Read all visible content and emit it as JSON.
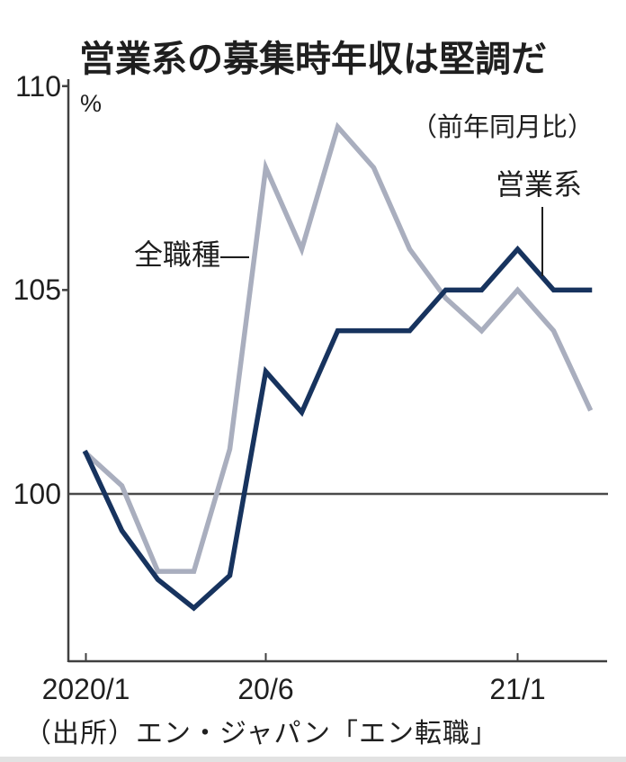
{
  "title": "営業系の募集時年収は堅調だ",
  "subtitle": "（前年同月比）",
  "unit_label": "%",
  "source": "（出所）エン・ジャパン「エン転職」",
  "annotations": {
    "all_jobs_label": "全職種—",
    "sales_label": "営業系"
  },
  "colors": {
    "sales_line": "#17335e",
    "all_jobs_line": "#a9aebe",
    "axis": "#404040",
    "gridline": "#4a4a4a",
    "text": "#1f1f1f",
    "bottom_strip": "#e2e2e2"
  },
  "chart_data": {
    "type": "line",
    "title": "営業系の募集時年収は堅調だ",
    "subtitle": "（前年同月比）",
    "ylabel": "%",
    "categories": [
      "2020/1",
      "2020/2",
      "2020/3",
      "2020/4",
      "2020/5",
      "2020/6",
      "2020/7",
      "2020/8",
      "2020/9",
      "2020/10",
      "2020/11",
      "2020/12",
      "2021/1",
      "2021/2",
      "2021/3"
    ],
    "series": [
      {
        "name": "全職種",
        "color": "#a9aebe",
        "values": [
          101,
          100.2,
          98.1,
          98.1,
          101.1,
          108,
          106,
          109,
          108,
          106,
          104.8,
          104,
          105,
          104,
          102.1
        ]
      },
      {
        "name": "営業系",
        "color": "#17335e",
        "values": [
          101,
          99.1,
          97.9,
          97.2,
          98,
          103,
          102,
          104,
          104,
          104,
          105,
          105,
          106,
          105,
          105
        ]
      }
    ],
    "x_ticks": [
      {
        "index": 0,
        "label": "2020/1"
      },
      {
        "index": 5,
        "label": "20/6"
      },
      {
        "index": 12,
        "label": "21/1"
      }
    ],
    "y_ticks": [
      {
        "value": 100,
        "label": "100"
      },
      {
        "value": 105,
        "label": "105"
      },
      {
        "value": 110,
        "label": "110"
      }
    ],
    "ylim": [
      95.9,
      110.2
    ],
    "baseline_value": 100,
    "grid": "baseline-only",
    "legend_position": "annotated-on-chart"
  }
}
